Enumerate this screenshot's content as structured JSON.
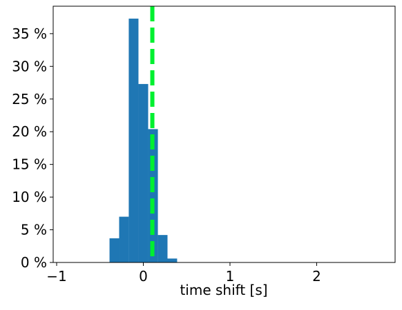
{
  "chart_data": {
    "type": "histogram",
    "bins": [
      -0.39,
      -0.279,
      -0.168,
      -0.056,
      0.056,
      0.168,
      0.279,
      0.39
    ],
    "values": [
      3.7,
      7.0,
      37.3,
      27.3,
      20.4,
      4.2,
      0.6
    ],
    "color": "#1f77b4",
    "xlabel": "time shift [s]",
    "xlim": [
      -1.04,
      2.905
    ],
    "ylim": [
      0,
      39.2
    ],
    "xticks": [
      {
        "value": -1,
        "label": "−1"
      },
      0,
      1,
      2
    ],
    "yticks": [
      {
        "value": 0,
        "label": "0 %"
      },
      {
        "value": 5,
        "label": "5 %"
      },
      {
        "value": 10,
        "label": "10 %"
      },
      {
        "value": 15,
        "label": "15 %"
      },
      {
        "value": 20,
        "label": "20 %"
      },
      {
        "value": 25,
        "label": "25 %"
      },
      {
        "value": 30,
        "label": "30 %"
      },
      {
        "value": 35,
        "label": "35 %"
      }
    ],
    "vline": {
      "x": 0.104,
      "color": "#00f030"
    }
  }
}
